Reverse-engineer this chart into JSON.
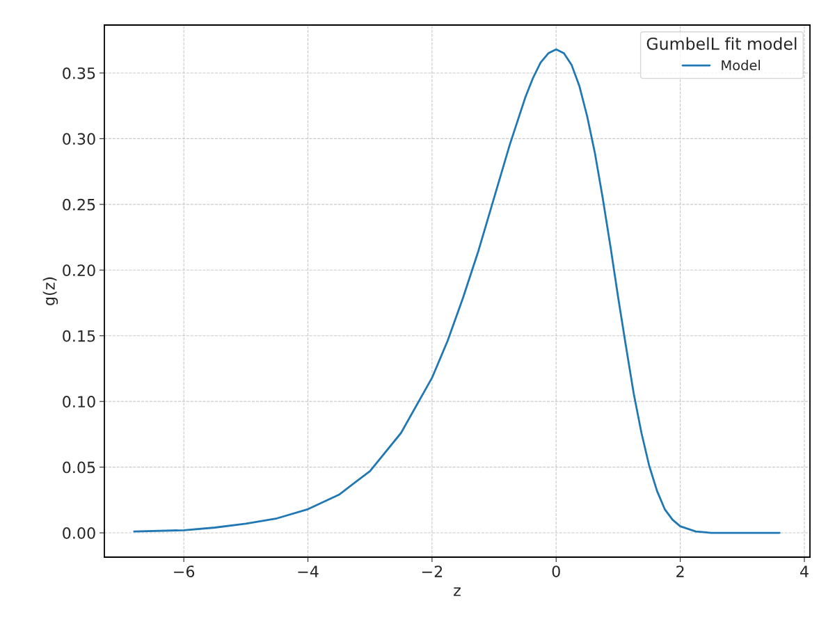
{
  "chart_data": {
    "type": "line",
    "xlabel": "z",
    "ylabel": "g(z)",
    "legend_title": "GumbelL fit model",
    "x": [
      -6.8,
      -6,
      -5.5,
      -5,
      -4.5,
      -4,
      -3.5,
      -3,
      -2.5,
      -2,
      -1.75,
      -1.5,
      -1.25,
      -1,
      -0.75,
      -0.625,
      -0.5,
      -0.375,
      -0.25,
      -0.125,
      0,
      0.125,
      0.25,
      0.375,
      0.5,
      0.625,
      0.75,
      0.875,
      1,
      1.125,
      1.25,
      1.375,
      1.5,
      1.625,
      1.75,
      1.875,
      2,
      2.25,
      2.5,
      3,
      3.6
    ],
    "series": [
      {
        "name": "Model",
        "color": "#1f77b4",
        "values": [
          0.001,
          0.002,
          0.004,
          0.007,
          0.011,
          0.018,
          0.029,
          0.047,
          0.076,
          0.118,
          0.146,
          0.179,
          0.215,
          0.255,
          0.295,
          0.313,
          0.331,
          0.346,
          0.358,
          0.365,
          0.368,
          0.365,
          0.356,
          0.34,
          0.317,
          0.289,
          0.255,
          0.218,
          0.179,
          0.142,
          0.106,
          0.076,
          0.051,
          0.032,
          0.018,
          0.01,
          0.005,
          0.001,
          0.0,
          0.0,
          0.0
        ]
      }
    ],
    "xlim": [
      -7.28,
      4.09
    ],
    "ylim": [
      -0.0185,
      0.3865
    ],
    "xticks": [
      {
        "value": -6,
        "label": "−6"
      },
      {
        "value": -4,
        "label": "−4"
      },
      {
        "value": -2,
        "label": "−2"
      },
      0,
      2,
      4
    ],
    "yticks": [
      {
        "value": 0,
        "label": "0.00"
      },
      {
        "value": 0.05,
        "label": "0.05"
      },
      {
        "value": 0.1,
        "label": "0.10"
      },
      {
        "value": 0.15,
        "label": "0.15"
      },
      {
        "value": 0.2,
        "label": "0.20"
      },
      {
        "value": 0.25,
        "label": "0.25"
      },
      {
        "value": 0.3,
        "label": "0.30"
      },
      {
        "value": 0.35,
        "label": "0.35"
      }
    ],
    "grid": true,
    "legend": "top right"
  }
}
